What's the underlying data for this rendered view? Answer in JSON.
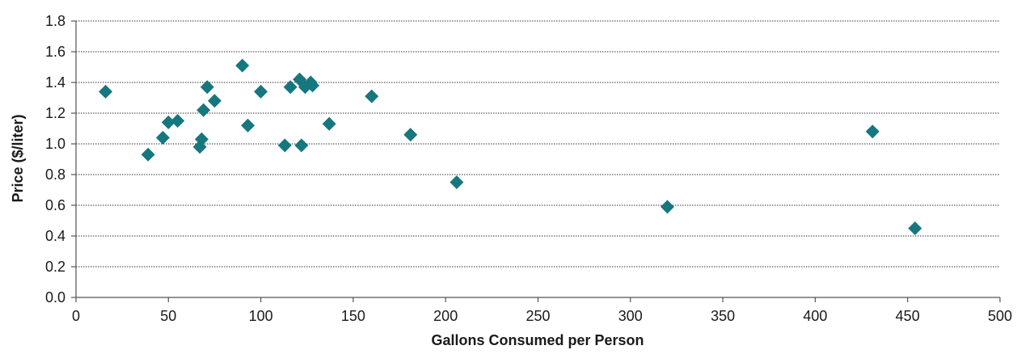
{
  "chart_data": {
    "type": "scatter",
    "title": "",
    "xlabel": "Gallons Consumed per Person",
    "ylabel": "Price ($/liter)",
    "xlim": [
      0,
      500
    ],
    "ylim": [
      0.0,
      1.8
    ],
    "x_ticks": [
      0,
      50,
      100,
      150,
      200,
      250,
      300,
      350,
      400,
      450,
      500
    ],
    "y_ticks": [
      "0.0",
      "0.2",
      "0.4",
      "0.6",
      "0.8",
      "1.0",
      "1.2",
      "1.4",
      "1.6",
      "1.8"
    ],
    "grid": "horizontal dotted",
    "legend": "none",
    "marker": "diamond",
    "marker_color": "#16777f",
    "series": [
      {
        "points": [
          {
            "x": 16,
            "y": 1.34
          },
          {
            "x": 39,
            "y": 0.93
          },
          {
            "x": 47,
            "y": 1.04
          },
          {
            "x": 50,
            "y": 1.14
          },
          {
            "x": 55,
            "y": 1.15
          },
          {
            "x": 67,
            "y": 0.98
          },
          {
            "x": 68,
            "y": 1.03
          },
          {
            "x": 69,
            "y": 1.22
          },
          {
            "x": 71,
            "y": 1.37
          },
          {
            "x": 75,
            "y": 1.28
          },
          {
            "x": 90,
            "y": 1.51
          },
          {
            "x": 93,
            "y": 1.12
          },
          {
            "x": 100,
            "y": 1.34
          },
          {
            "x": 113,
            "y": 0.99
          },
          {
            "x": 116,
            "y": 1.37
          },
          {
            "x": 121,
            "y": 1.42
          },
          {
            "x": 122,
            "y": 0.99
          },
          {
            "x": 124,
            "y": 1.37
          },
          {
            "x": 127,
            "y": 1.4
          },
          {
            "x": 128,
            "y": 1.38
          },
          {
            "x": 137,
            "y": 1.13
          },
          {
            "x": 160,
            "y": 1.31
          },
          {
            "x": 181,
            "y": 1.06
          },
          {
            "x": 206,
            "y": 0.75
          },
          {
            "x": 320,
            "y": 0.59
          },
          {
            "x": 431,
            "y": 1.08
          },
          {
            "x": 454,
            "y": 0.45
          }
        ]
      }
    ]
  }
}
